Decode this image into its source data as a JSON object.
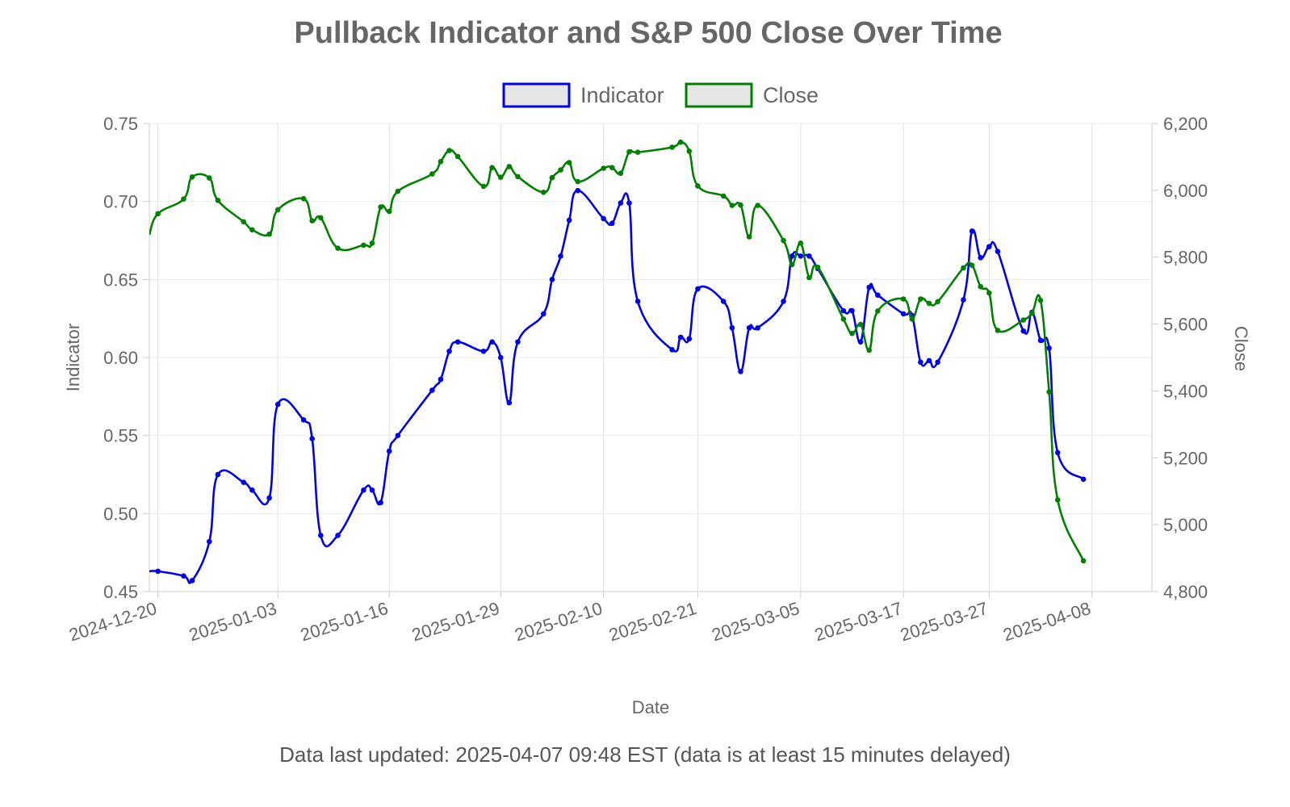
{
  "chart_data": {
    "type": "line",
    "title": "Pullback Indicator and S&P 500 Close Over Time",
    "xlabel": "Date",
    "ylabel": "Indicator",
    "y2label": "Close",
    "ylim": [
      0.45,
      0.75
    ],
    "y2lim": [
      4800,
      6200
    ],
    "xlim": [
      "2024-12-19",
      "2025-04-15"
    ],
    "grid": true,
    "legend_position": "top-center",
    "x_ticks": [
      "2024-12-20",
      "2025-01-03",
      "2025-01-16",
      "2025-01-29",
      "2025-02-10",
      "2025-02-21",
      "2025-03-05",
      "2025-03-17",
      "2025-03-27",
      "2025-04-08"
    ],
    "y_ticks": [
      "0.45",
      "0.50",
      "0.55",
      "0.60",
      "0.65",
      "0.70",
      "0.75"
    ],
    "y2_ticks": [
      "4,800",
      "5,000",
      "5,200",
      "5,400",
      "5,600",
      "5,800",
      "6,000",
      "6,200"
    ],
    "dates": [
      "2024-12-19",
      "2024-12-20",
      "2024-12-23",
      "2024-12-24",
      "2024-12-26",
      "2024-12-27",
      "2024-12-30",
      "2024-12-31",
      "2025-01-02",
      "2025-01-03",
      "2025-01-06",
      "2025-01-07",
      "2025-01-08",
      "2025-01-10",
      "2025-01-13",
      "2025-01-14",
      "2025-01-15",
      "2025-01-16",
      "2025-01-17",
      "2025-01-21",
      "2025-01-22",
      "2025-01-23",
      "2025-01-24",
      "2025-01-27",
      "2025-01-28",
      "2025-01-29",
      "2025-01-30",
      "2025-01-31",
      "2025-02-03",
      "2025-02-04",
      "2025-02-05",
      "2025-02-06",
      "2025-02-07",
      "2025-02-10",
      "2025-02-11",
      "2025-02-12",
      "2025-02-13",
      "2025-02-14",
      "2025-02-18",
      "2025-02-19",
      "2025-02-20",
      "2025-02-21",
      "2025-02-24",
      "2025-02-25",
      "2025-02-26",
      "2025-02-27",
      "2025-02-28",
      "2025-03-03",
      "2025-03-04",
      "2025-03-05",
      "2025-03-06",
      "2025-03-07",
      "2025-03-10",
      "2025-03-11",
      "2025-03-12",
      "2025-03-13",
      "2025-03-14",
      "2025-03-17",
      "2025-03-18",
      "2025-03-19",
      "2025-03-20",
      "2025-03-21",
      "2025-03-24",
      "2025-03-25",
      "2025-03-26",
      "2025-03-27",
      "2025-03-28",
      "2025-03-31",
      "2025-04-01",
      "2025-04-02",
      "2025-04-03",
      "2025-04-04",
      "2025-04-07"
    ],
    "series": [
      {
        "name": "Indicator",
        "color": "#0000ee",
        "axis": "left",
        "values": [
          0.463,
          0.463,
          0.46,
          0.457,
          0.482,
          0.525,
          0.52,
          0.515,
          0.51,
          0.57,
          0.56,
          0.548,
          0.486,
          0.486,
          0.515,
          0.515,
          0.507,
          0.54,
          0.55,
          0.579,
          0.586,
          0.604,
          0.61,
          0.604,
          0.61,
          0.6,
          0.571,
          0.61,
          0.628,
          0.65,
          0.665,
          0.688,
          0.707,
          0.689,
          0.686,
          0.699,
          0.699,
          0.636,
          0.605,
          0.613,
          0.612,
          0.644,
          0.636,
          0.619,
          0.591,
          0.619,
          0.619,
          0.636,
          0.665,
          0.665,
          0.665,
          0.657,
          0.63,
          0.63,
          0.61,
          0.645,
          0.64,
          0.628,
          0.627,
          0.597,
          0.598,
          0.597,
          0.637,
          0.681,
          0.664,
          0.671,
          0.668,
          0.617,
          0.629,
          0.611,
          0.606,
          0.539,
          0.522
        ]
      },
      {
        "name": "Close",
        "color": "#008000",
        "axis": "right",
        "values": [
          5867,
          5930,
          5974,
          6040,
          6037,
          5970,
          5906,
          5882,
          5869,
          5942,
          5975,
          5909,
          5918,
          5827,
          5836,
          5842,
          5950,
          5937,
          5997,
          6049,
          6086,
          6119,
          6101,
          6012,
          6068,
          6039,
          6071,
          6041,
          5994,
          6038,
          6061,
          6083,
          6026,
          6066,
          6068,
          6051,
          6115,
          6114,
          6129,
          6144,
          6117,
          6013,
          5983,
          5955,
          5956,
          5861,
          5955,
          5850,
          5778,
          5842,
          5739,
          5770,
          5615,
          5572,
          5599,
          5522,
          5639,
          5675,
          5615,
          5675,
          5662,
          5667,
          5768,
          5776,
          5712,
          5693,
          5581,
          5612,
          5633,
          5671,
          5397,
          5074,
          4892
        ]
      }
    ]
  },
  "footer": "Data last updated: 2025-04-07 09:48 EST (data is at least 15 minutes delayed)"
}
